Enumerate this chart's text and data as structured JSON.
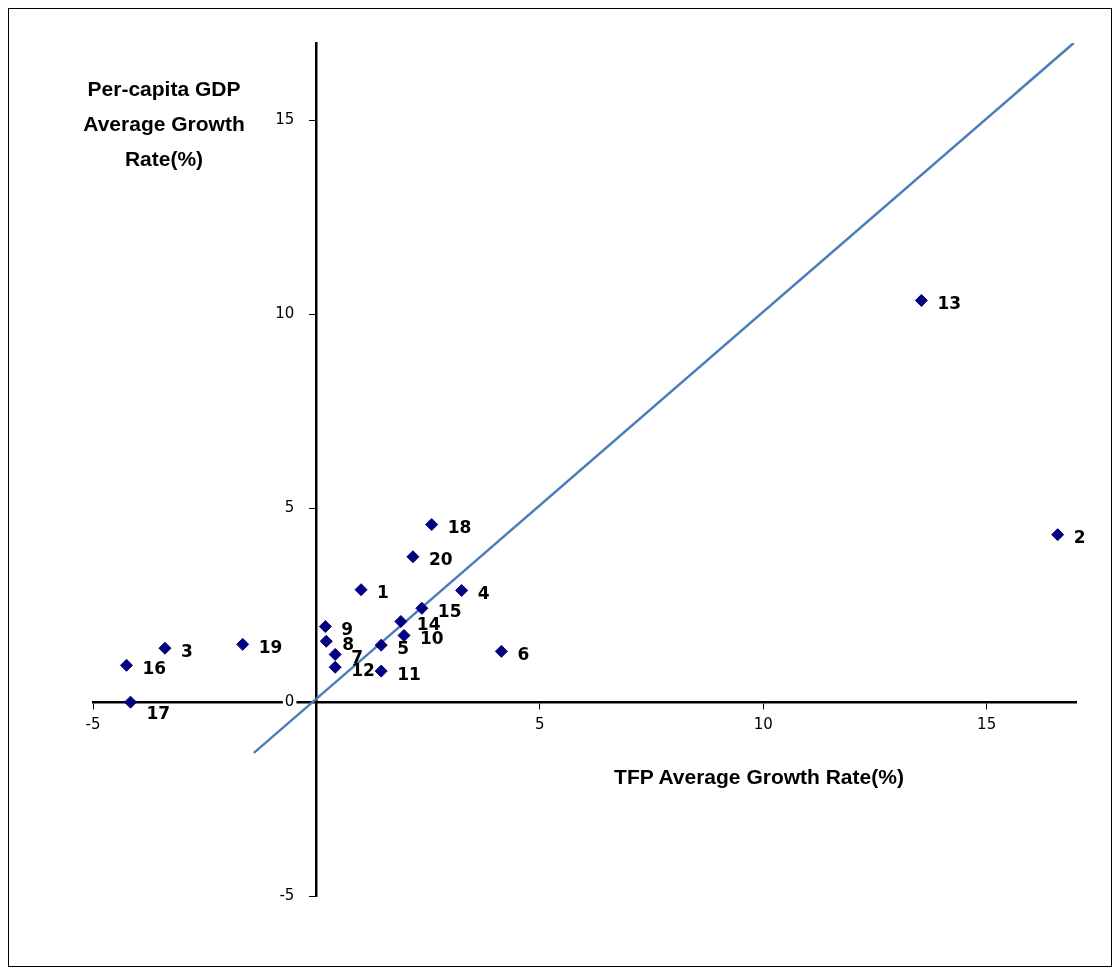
{
  "chart_data": {
    "type": "scatter",
    "xlabel": "TFP Average Growth Rate(%)",
    "ylabel": "Per-capita GDP Average Growth Rate(%)",
    "xlim": [
      -5,
      17
    ],
    "ylim": [
      -5,
      17
    ],
    "xticks": [
      -5,
      {
        "value": 0,
        "label": null
      },
      5,
      10,
      15
    ],
    "yticks": [
      -5,
      0,
      5,
      10,
      15
    ],
    "grid": false,
    "series": [
      {
        "type": "scatter",
        "color": "#000080",
        "marker": "diamond",
        "x": [
          1.0,
          16.59,
          -3.39,
          3.25,
          1.45,
          4.14,
          0.42,
          0.22,
          0.2,
          1.96,
          1.45,
          0.42,
          13.54,
          1.89,
          2.36,
          -4.25,
          -4.16,
          2.58,
          -1.65,
          2.16
        ],
        "values": [
          2.9,
          4.32,
          1.39,
          2.88,
          1.47,
          1.31,
          1.23,
          1.57,
          1.95,
          1.72,
          0.8,
          0.9,
          10.36,
          2.08,
          2.42,
          0.95,
          0.0,
          4.58,
          1.49,
          3.75
        ]
      },
      {
        "type": "line",
        "color": "#4a7ebb",
        "line_style": "solid",
        "x": [
          -1.4,
          16.95
        ],
        "values": [
          -1.31,
          17.0
        ]
      }
    ],
    "annotations": [
      {
        "text": "1",
        "x": 1.0,
        "y": 2.9
      },
      {
        "text": "2",
        "x": 16.59,
        "y": 4.32
      },
      {
        "text": "3",
        "x": -3.39,
        "y": 1.39
      },
      {
        "text": "4",
        "x": 3.25,
        "y": 2.88
      },
      {
        "text": "5",
        "x": 1.45,
        "y": 1.47
      },
      {
        "text": "6",
        "x": 4.14,
        "y": 1.31
      },
      {
        "text": "7",
        "x": 0.42,
        "y": 1.23
      },
      {
        "text": "8",
        "x": 0.22,
        "y": 1.57
      },
      {
        "text": "9",
        "x": 0.2,
        "y": 1.95
      },
      {
        "text": "10",
        "x": 1.96,
        "y": 1.72
      },
      {
        "text": "11",
        "x": 1.45,
        "y": 0.8
      },
      {
        "text": "12",
        "x": 0.42,
        "y": 0.9
      },
      {
        "text": "13",
        "x": 13.54,
        "y": 10.36
      },
      {
        "text": "14",
        "x": 1.89,
        "y": 2.08
      },
      {
        "text": "15",
        "x": 2.36,
        "y": 2.42
      },
      {
        "text": "16",
        "x": -4.25,
        "y": 0.95
      },
      {
        "text": "17",
        "x": -4.16,
        "y": 0.0
      },
      {
        "text": "18",
        "x": 2.58,
        "y": 4.58
      },
      {
        "text": "19",
        "x": -1.65,
        "y": 1.49
      },
      {
        "text": "20",
        "x": 2.16,
        "y": 3.75
      }
    ]
  }
}
